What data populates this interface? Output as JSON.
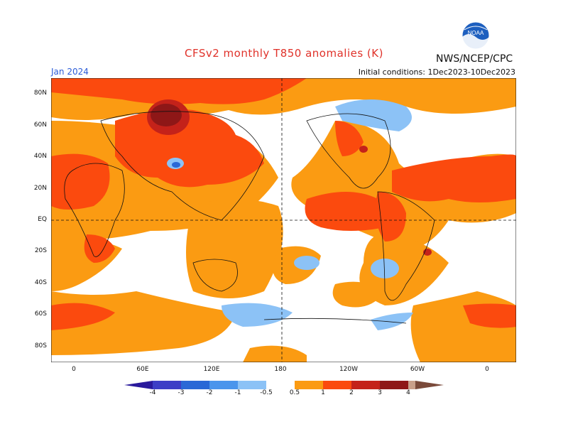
{
  "title": "CFSv2 monthly T850 anomalies (K)",
  "agency": "NWS/NCEP/CPC",
  "valid_month": "Jan 2024",
  "initial_conditions": "Initial conditions: 1Dec2023-10Dec2023",
  "logo_text": "NOAA",
  "lat_labels": [
    "80N",
    "60N",
    "40N",
    "20N",
    "EQ",
    "20S",
    "40S",
    "60S",
    "80S"
  ],
  "lon_labels": [
    "0",
    "60E",
    "120E",
    "180",
    "120W",
    "60W",
    "0"
  ],
  "colorbar": {
    "labels": [
      "-4",
      "-3",
      "-2",
      "-1",
      "-0.5",
      "0.5",
      "1",
      "2",
      "3",
      "4"
    ],
    "colors": {
      "below_-4": "#2a1a9c",
      "-4_-3": "#3d3ec6",
      "-3_-2": "#2a68d6",
      "-2_-1": "#4a95ec",
      "-1_-0.5": "#8cc2f6",
      "-0.5_0.5": "#ffffff",
      "0.5_1": "#fb9b12",
      "1_2": "#fb4a0e",
      "2_3": "#c4221a",
      "3_4": "#8e1717",
      "above_4": "#c9a08a",
      "extreme": "#7a4a3a"
    }
  }
}
